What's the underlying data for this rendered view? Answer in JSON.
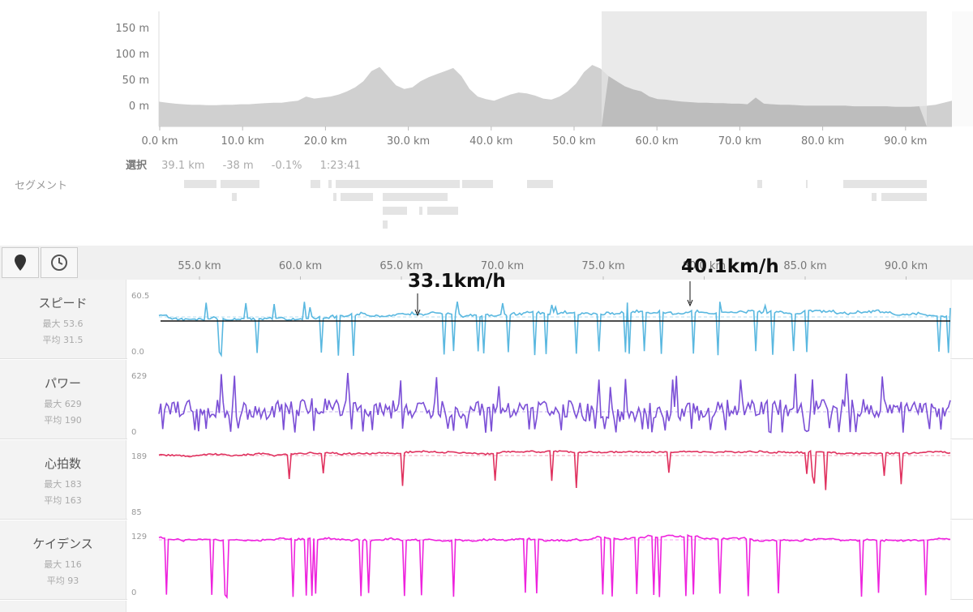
{
  "overview": {
    "y_ticks": [
      "150 m",
      "100 m",
      "50 m",
      "0 m"
    ],
    "x_ticks": [
      "0.0 km",
      "10.0 km",
      "20.0 km",
      "30.0 km",
      "40.0 km",
      "50.0 km",
      "60.0 km",
      "70.0 km",
      "80.0 km",
      "90.0 km"
    ],
    "elevation_profile": [
      20,
      18,
      16,
      15,
      14,
      14,
      13,
      13,
      14,
      14,
      15,
      15,
      16,
      17,
      18,
      18,
      20,
      22,
      30,
      26,
      28,
      30,
      34,
      40,
      48,
      60,
      80,
      88,
      70,
      52,
      45,
      48,
      60,
      68,
      74,
      80,
      86,
      70,
      45,
      30,
      25,
      22,
      28,
      34,
      38,
      36,
      32,
      26,
      24,
      30,
      40,
      55,
      78,
      92,
      85,
      70,
      60,
      50,
      44,
      40,
      30,
      25,
      24,
      22,
      20,
      19,
      18,
      18,
      17,
      17,
      16,
      16,
      15,
      28,
      16,
      15,
      14,
      14,
      13,
      12,
      12,
      12,
      12,
      12,
      12,
      11,
      11,
      11,
      11,
      11,
      10,
      10,
      10,
      11,
      12,
      14,
      18,
      22
    ],
    "selection_fill": "#e3e3e3",
    "area_fill": "#d0d0d0"
  },
  "selection": {
    "label": "選択",
    "distance": "39.1 km",
    "elevation": "-38 m",
    "grade": "-0.1%",
    "time": "1:23:41"
  },
  "segments": {
    "label": "セグメント"
  },
  "toolbar": {
    "map_icon": "map-pin-icon",
    "clock_icon": "clock-icon",
    "x_ticks": [
      "55.0 km",
      "60.0 km",
      "65.0 km",
      "70.0 km",
      "75.0 km",
      "80.0 km",
      "85.0 km",
      "90.0 km"
    ]
  },
  "annotations": {
    "left": "33.1km/h",
    "right": "40.1km/h"
  },
  "rows": [
    {
      "key": "speed",
      "name": "スピード",
      "max": "最大 53.6",
      "avg": "平均 31.5",
      "ymax": "60.5",
      "ymin": "0.0",
      "color": "#5ab8e0"
    },
    {
      "key": "power",
      "name": "パワー",
      "max": "最大 629",
      "avg": "平均 190",
      "ymax": "629",
      "ymin": "0",
      "color": "#7b4fd6"
    },
    {
      "key": "hr",
      "name": "心拍数",
      "max": "最大 183",
      "avg": "平均 163",
      "ymax": "189",
      "ymin": "85",
      "color": "#e0325f"
    },
    {
      "key": "cadence",
      "name": "ケイデンス",
      "max": "最大 116",
      "avg": "平均 93",
      "ymax": "129",
      "ymin": "0",
      "color": "#ee22dd"
    }
  ]
}
